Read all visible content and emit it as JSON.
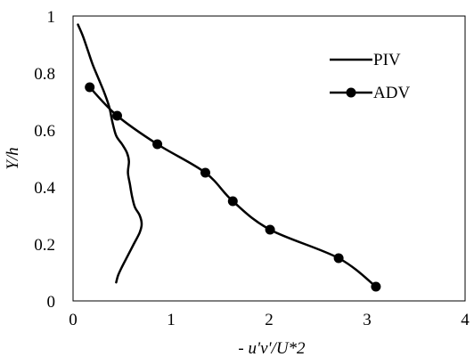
{
  "chart_data": {
    "type": "line",
    "xlabel": "- u'v'/U*2",
    "ylabel": "Y/h",
    "xlim": [
      0,
      4
    ],
    "ylim": [
      0,
      1
    ],
    "x_ticks": [
      "0",
      "1",
      "2",
      "3",
      "4"
    ],
    "y_ticks": [
      "0",
      "0.2",
      "0.4",
      "0.6",
      "0.8",
      "1"
    ],
    "grid": false,
    "legend_position": "top-right",
    "series": [
      {
        "name": "PIV",
        "marker": "none",
        "color": "#000000",
        "points": [
          [
            0.05,
            0.97
          ],
          [
            0.1,
            0.93
          ],
          [
            0.15,
            0.88
          ],
          [
            0.2,
            0.83
          ],
          [
            0.26,
            0.78
          ],
          [
            0.32,
            0.73
          ],
          [
            0.37,
            0.68
          ],
          [
            0.4,
            0.63
          ],
          [
            0.44,
            0.58
          ],
          [
            0.5,
            0.55
          ],
          [
            0.55,
            0.52
          ],
          [
            0.57,
            0.49
          ],
          [
            0.56,
            0.45
          ],
          [
            0.58,
            0.41
          ],
          [
            0.6,
            0.37
          ],
          [
            0.63,
            0.33
          ],
          [
            0.68,
            0.3
          ],
          [
            0.7,
            0.27
          ],
          [
            0.68,
            0.24
          ],
          [
            0.62,
            0.2
          ],
          [
            0.56,
            0.16
          ],
          [
            0.5,
            0.12
          ],
          [
            0.46,
            0.09
          ],
          [
            0.44,
            0.065
          ]
        ]
      },
      {
        "name": "ADV",
        "marker": "circle",
        "color": "#000000",
        "points": [
          [
            0.17,
            0.75
          ],
          [
            0.45,
            0.65
          ],
          [
            0.86,
            0.55
          ],
          [
            1.35,
            0.45
          ],
          [
            1.63,
            0.35
          ],
          [
            2.01,
            0.25
          ],
          [
            2.71,
            0.15
          ],
          [
            3.09,
            0.05
          ]
        ]
      }
    ]
  }
}
